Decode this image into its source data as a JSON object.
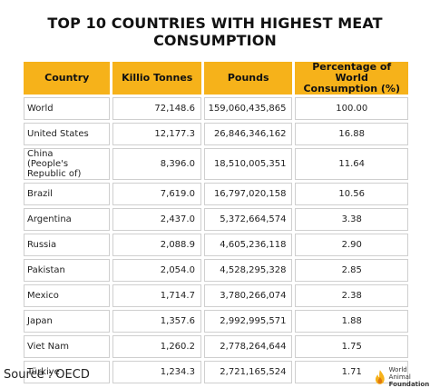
{
  "title": "TOP 10 COUNTRIES WITH HIGHEST MEAT CONSUMPTION",
  "source": "Source : OECD",
  "logo": {
    "line1": "World Animal",
    "line2": "Foundation"
  },
  "chart_data": {
    "type": "table",
    "title": "TOP 10 COUNTRIES WITH HIGHEST MEAT CONSUMPTION",
    "columns": [
      "Country",
      "Killio Tonnes",
      "Pounds",
      "Percentage of World Consumption (%)"
    ],
    "rows": [
      {
        "country": "World",
        "country2": "",
        "kt": "72,148.6",
        "pounds": "159,060,435,865",
        "pct": "100.00"
      },
      {
        "country": "United States",
        "country2": "",
        "kt": "12,177.3",
        "pounds": "26,846,346,162",
        "pct": "16.88"
      },
      {
        "country": "China",
        "country2": "(People's Republic of)",
        "kt": "8,396.0",
        "pounds": "18,510,005,351",
        "pct": "11.64"
      },
      {
        "country": "Brazil",
        "country2": "",
        "kt": "7,619.0",
        "pounds": "16,797,020,158",
        "pct": "10.56"
      },
      {
        "country": "Argentina",
        "country2": "",
        "kt": "2,437.0",
        "pounds": "5,372,664,574",
        "pct": "3.38"
      },
      {
        "country": "Russia",
        "country2": "",
        "kt": "2,088.9",
        "pounds": "4,605,236,118",
        "pct": "2.90"
      },
      {
        "country": "Pakistan",
        "country2": "",
        "kt": "2,054.0",
        "pounds": "4,528,295,328",
        "pct": "2.85"
      },
      {
        "country": "Mexico",
        "country2": "",
        "kt": "1,714.7",
        "pounds": "3,780,266,074",
        "pct": "2.38"
      },
      {
        "country": "Japan",
        "country2": "",
        "kt": "1,357.6",
        "pounds": "2,992,995,571",
        "pct": "1.88"
      },
      {
        "country": "Viet Nam",
        "country2": "",
        "kt": "1,260.2",
        "pounds": "2,778,264,644",
        "pct": "1.75"
      },
      {
        "country": "Türkiye",
        "country2": "",
        "kt": "1,234.3",
        "pounds": "2,721,165,524",
        "pct": "1.71"
      }
    ]
  },
  "colors": {
    "header": "#f6b21a",
    "border": "#cfcfcf"
  }
}
